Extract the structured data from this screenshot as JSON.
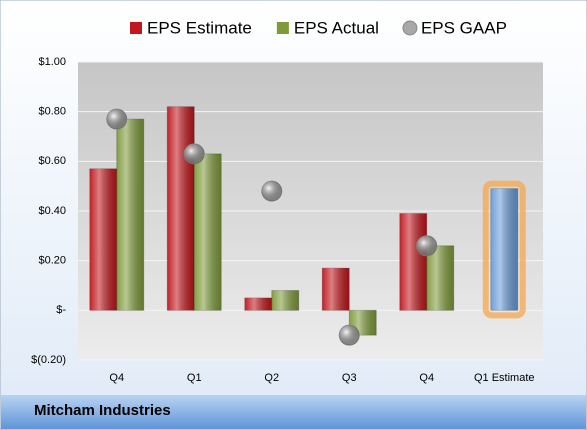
{
  "chart_data": {
    "type": "bar",
    "footer": "Mitcham Industries",
    "categories": [
      "Q4",
      "Q1",
      "Q2",
      "Q3",
      "Q4",
      "Q1 Estimate"
    ],
    "series": [
      {
        "name": "EPS Estimate",
        "type": "bar",
        "color": "#c0161c",
        "values": [
          0.57,
          0.82,
          0.05,
          0.17,
          0.39,
          null
        ]
      },
      {
        "name": "EPS Actual",
        "type": "bar",
        "color": "#7e9a3a",
        "values": [
          0.77,
          0.63,
          0.08,
          -0.1,
          0.26,
          null
        ]
      },
      {
        "name": "EPS GAAP",
        "type": "scatter",
        "color": "#a8a8a8",
        "values": [
          0.77,
          0.63,
          0.48,
          -0.1,
          0.26,
          null
        ]
      },
      {
        "type": "bar",
        "color": "#6a9bd8",
        "glow": "#f5a84c",
        "values": [
          null,
          null,
          null,
          null,
          null,
          0.49
        ]
      }
    ],
    "ylim": [
      -0.2,
      1.0
    ],
    "yticks": [
      {
        "value": -0.2,
        "label": "$(0.20)"
      },
      {
        "value": 0,
        "label": "$-"
      },
      {
        "value": 0.2,
        "label": "$0.20"
      },
      {
        "value": 0.4,
        "label": "$0.40"
      },
      {
        "value": 0.6,
        "label": "$0.60"
      },
      {
        "value": 0.8,
        "label": "$0.80"
      },
      {
        "value": 1.0,
        "label": "$1.00"
      }
    ],
    "grid": true
  }
}
